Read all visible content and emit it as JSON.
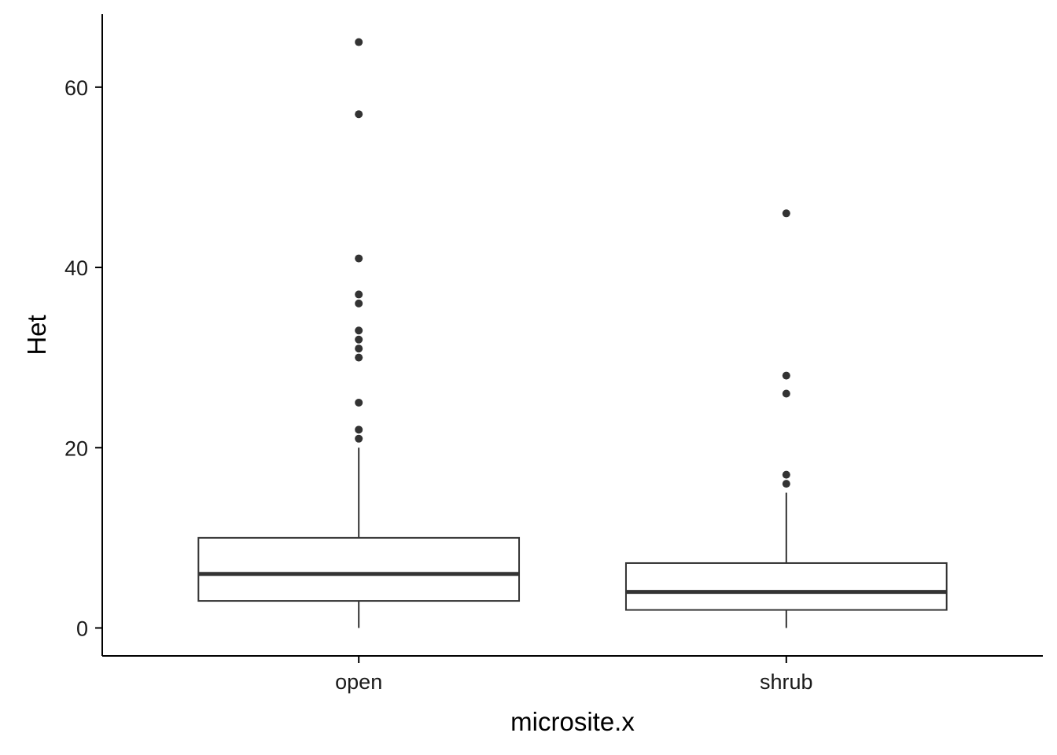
{
  "chart_data": {
    "type": "box",
    "xlabel": "microsite.x",
    "ylabel": "Het",
    "categories": [
      "open",
      "shrub"
    ],
    "ylim": [
      -3.1,
      68.1
    ],
    "y_ticks": [
      0,
      20,
      40,
      60
    ],
    "y_tick_labels": [
      "0",
      "20",
      "40",
      "60"
    ],
    "grid": false,
    "boxes": [
      {
        "category": "open",
        "q1": 3,
        "median": 6,
        "q3": 10,
        "whisker_low": 0,
        "whisker_high": 20,
        "outliers": [
          21,
          22,
          25,
          30,
          31,
          32,
          33,
          36,
          37,
          41,
          57,
          65
        ]
      },
      {
        "category": "shrub",
        "q1": 2,
        "median": 4,
        "q3": 7.2,
        "whisker_low": 0,
        "whisker_high": 15,
        "outliers": [
          16,
          17,
          26,
          28,
          46
        ]
      }
    ],
    "colors": {
      "box_line": "#333333",
      "box_fill": "#ffffff",
      "axis": "#000000",
      "point": "#333333"
    }
  }
}
